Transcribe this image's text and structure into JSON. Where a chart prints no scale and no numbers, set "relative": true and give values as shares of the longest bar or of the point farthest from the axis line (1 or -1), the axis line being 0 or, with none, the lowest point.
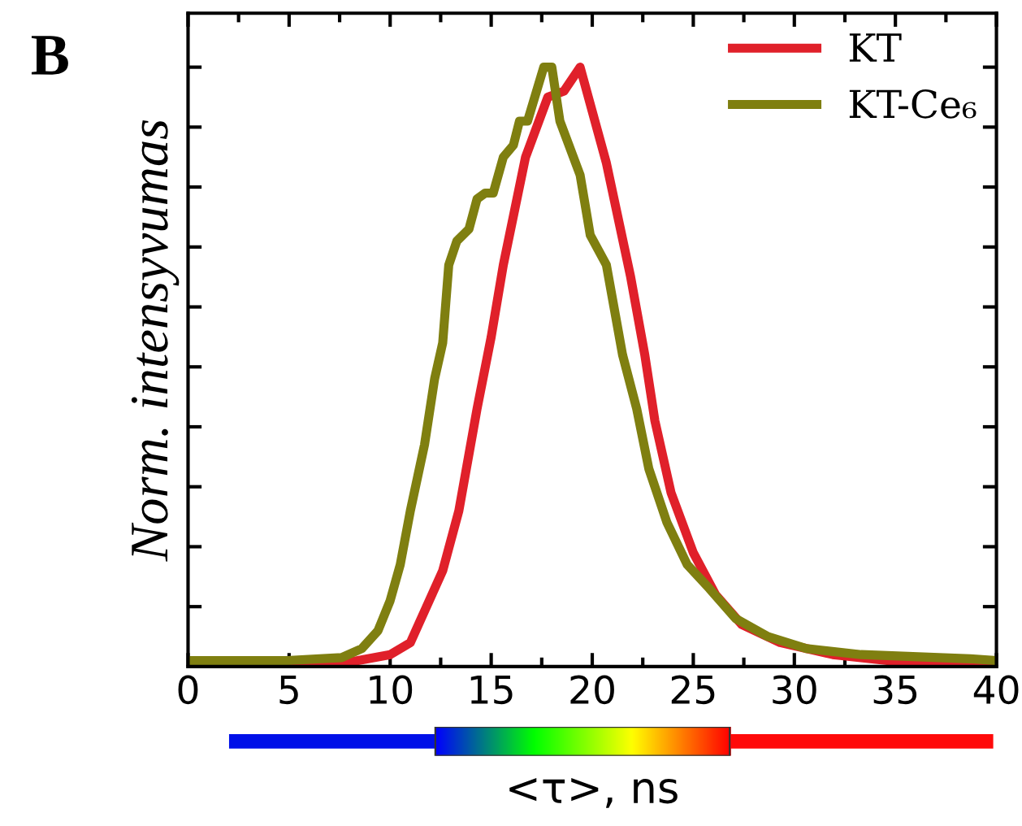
{
  "chart_data": {
    "type": "line",
    "xlabel": "<τ>, ns",
    "ylabel": "Norm. intensyvumas",
    "annotations": [
      "B"
    ],
    "relative": true,
    "xlim": [
      0,
      40
    ],
    "xticks": [
      0,
      5,
      10,
      15,
      20,
      25,
      30,
      35,
      40
    ],
    "tick_labels": "x",
    "legend": "top right",
    "grid": false,
    "series": [
      {
        "name": "KT",
        "color": "#e0202a",
        "x": [
          0,
          7.6,
          10,
          11,
          11.8,
          12.6,
          13.4,
          14.3,
          15.0,
          15.6,
          16.7,
          17.8,
          18.6,
          19.4,
          20.7,
          21.9,
          22.6,
          23.1,
          23.9,
          25.0,
          26.1,
          27.4,
          29.3,
          31.9,
          36,
          40
        ],
        "values": [
          0,
          0.005,
          0.02,
          0.04,
          0.1,
          0.16,
          0.26,
          0.43,
          0.55,
          0.67,
          0.85,
          0.95,
          0.96,
          1.0,
          0.84,
          0.65,
          0.52,
          0.41,
          0.29,
          0.19,
          0.12,
          0.07,
          0.04,
          0.02,
          0.005,
          0.005
        ]
      },
      {
        "name": "KT-Ce₆",
        "color": "#7f7f10",
        "x": [
          0,
          4.9,
          7.6,
          8.6,
          9.4,
          10,
          10.5,
          11.0,
          11.7,
          12.2,
          12.6,
          12.9,
          13.3,
          13.9,
          14.3,
          14.7,
          15.1,
          15.6,
          16.1,
          16.4,
          16.8,
          17.6,
          18.0,
          18.4,
          19.4,
          19.9,
          20.7,
          21.5,
          22.2,
          22.8,
          23.7,
          24.7,
          25.8,
          27.1,
          28.7,
          30.6,
          33.3,
          38.7,
          40
        ],
        "values": [
          0.01,
          0.01,
          0.015,
          0.03,
          0.06,
          0.11,
          0.17,
          0.26,
          0.37,
          0.48,
          0.54,
          0.67,
          0.71,
          0.73,
          0.78,
          0.79,
          0.79,
          0.85,
          0.87,
          0.91,
          0.91,
          1.0,
          1.0,
          0.91,
          0.82,
          0.72,
          0.67,
          0.52,
          0.43,
          0.33,
          0.24,
          0.17,
          0.13,
          0.08,
          0.05,
          0.03,
          0.02,
          0.013,
          0.01
        ]
      }
    ]
  }
}
